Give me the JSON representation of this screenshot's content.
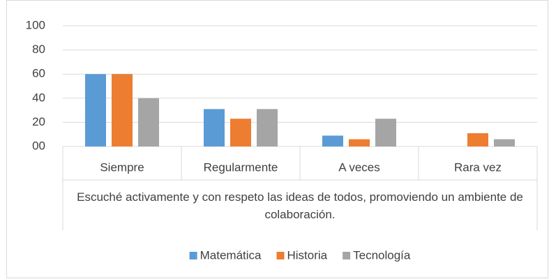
{
  "chart_data": {
    "type": "bar",
    "xlabel": "Escuché activamente y con respeto las ideas de todos, promoviendo un ambiente de colaboración.",
    "categories": [
      "Siempre",
      "Regularmente",
      "A veces",
      "Rara vez"
    ],
    "series": [
      {
        "name": "Matemática",
        "color": "#5b9bd5",
        "values": [
          60,
          31,
          9,
          0
        ]
      },
      {
        "name": "Historia",
        "color": "#ed7d31",
        "values": [
          60,
          23,
          6,
          11
        ]
      },
      {
        "name": "Tecnología",
        "color": "#a5a5a5",
        "values": [
          40,
          31,
          23,
          6
        ]
      }
    ],
    "ylim": [
      0,
      100
    ],
    "yticks": [
      {
        "value": 0,
        "label": "00"
      },
      20,
      40,
      60,
      80,
      100
    ],
    "grid": true,
    "legend": "bottom"
  }
}
